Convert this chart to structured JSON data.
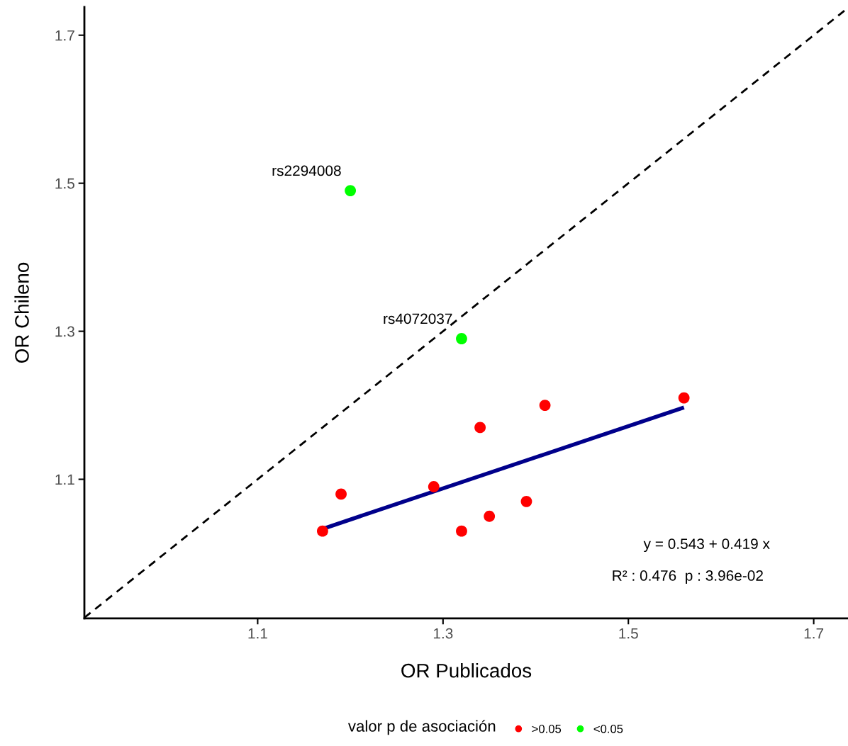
{
  "chart_data": {
    "type": "scatter",
    "xlabel": "OR Publicados",
    "ylabel": "OR Chileno",
    "legend_title": "valor p de asociación",
    "xlim": [
      0.913,
      1.737
    ],
    "ylim": [
      0.912,
      1.738
    ],
    "xticks": [
      1.1,
      1.3,
      1.5,
      1.7
    ],
    "yticks": [
      1.1,
      1.3,
      1.5,
      1.7
    ],
    "grid": false,
    "legend": "bottom",
    "series": [
      {
        "name": ">0.05",
        "color": "#ff0000",
        "marker": "circle",
        "x": [
          1.17,
          1.19,
          1.29,
          1.32,
          1.34,
          1.35,
          1.39,
          1.41,
          1.56
        ],
        "values": [
          1.03,
          1.08,
          1.09,
          1.03,
          1.17,
          1.05,
          1.07,
          1.2,
          1.21
        ]
      },
      {
        "name": "<0.05",
        "color": "#00ff00",
        "marker": "circle",
        "x": [
          1.2,
          1.32
        ],
        "values": [
          1.49,
          1.29
        ]
      },
      {
        "type": "line",
        "color": "#00008b",
        "line_style": "solid",
        "x": [
          1.17,
          1.56
        ],
        "values": [
          1.033,
          1.197
        ]
      },
      {
        "type": "line",
        "color": "#000000",
        "line_style": "dashed",
        "x": [
          0.913,
          1.737
        ],
        "values": [
          0.913,
          1.737
        ]
      }
    ],
    "annotations": [
      {
        "text": "rs2294008",
        "x": 1.2,
        "y": 1.49
      },
      {
        "text": "rs4072037",
        "x": 1.32,
        "y": 1.29
      },
      "y = 0.543 + 0.419 x",
      "R² : 0.476  p : 3.96e-02"
    ]
  }
}
